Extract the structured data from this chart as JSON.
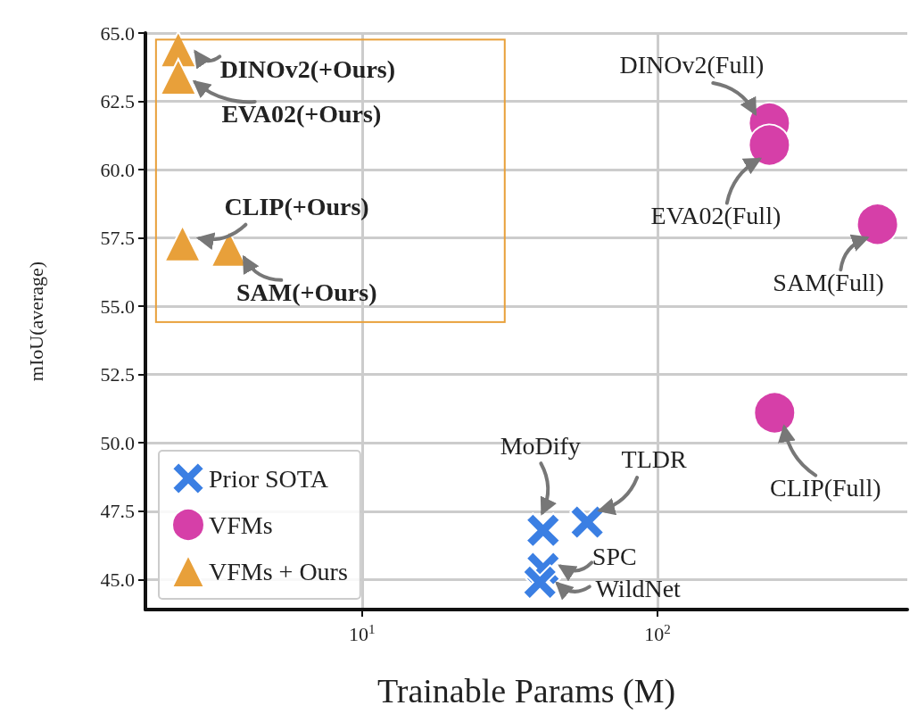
{
  "chart_data": {
    "type": "scatter",
    "xlabel": "Trainable Params (M)",
    "ylabel": "mIoU(average)",
    "log": "x",
    "xlim": [
      1.85,
      700
    ],
    "xticks": [
      {
        "value": 10,
        "label": "10$^{1}$"
      },
      {
        "value": 100,
        "label": "10$^{2}$"
      }
    ],
    "ylim": [
      43.9,
      65
    ],
    "yticks": [
      {
        "value": 45,
        "label": "45.0"
      },
      {
        "value": 47.5,
        "label": "47.5"
      },
      {
        "value": 50,
        "label": "50.0"
      },
      {
        "value": 52.5,
        "label": "52.5"
      },
      {
        "value": 55,
        "label": "55.0"
      },
      {
        "value": 57.5,
        "label": "57.5"
      },
      {
        "value": 60,
        "label": "60.0"
      },
      {
        "value": 62.5,
        "label": "62.5"
      },
      {
        "value": 65,
        "label": "65.0"
      }
    ],
    "grid": true,
    "legend": "bottom left",
    "series": [
      {
        "name": "Prior SOTA",
        "color": "#3b7fe3",
        "marker": "cross",
        "x": [
          41,
          57.8,
          41,
          40
        ],
        "values": [
          46.8,
          47.1,
          45.4,
          44.9
        ]
      },
      {
        "name": "VFMs",
        "color": "#d63fa8",
        "marker": "circle",
        "x": [
          239,
          239,
          555,
          249
        ],
        "values": [
          61.7,
          60.9,
          58.0,
          51.1
        ]
      },
      {
        "name": "VFMs + Ours",
        "color": "#e8a03a",
        "marker": "triangle",
        "x": [
          2.39,
          2.39,
          2.47,
          3.55
        ],
        "values": [
          64.4,
          63.4,
          57.3,
          57.1
        ]
      }
    ],
    "annotations": [
      {
        "text": "DINOv2(+Ours)",
        "x": 2.39,
        "y": 64.4
      },
      {
        "text": "EVA02(+Ours)",
        "x": 2.39,
        "y": 63.4
      },
      {
        "text": "CLIP(+Ours)",
        "x": 2.47,
        "y": 57.3
      },
      {
        "text": "SAM(+Ours)",
        "x": 3.55,
        "y": 57.1
      },
      {
        "text": "DINOv2(Full)",
        "x": 239,
        "y": 61.7
      },
      {
        "text": "EVA02(Full)",
        "x": 239,
        "y": 60.9
      },
      {
        "text": "SAM(Full)",
        "x": 555,
        "y": 58.0
      },
      {
        "text": "CLIP(Full)",
        "x": 249,
        "y": 51.1
      },
      {
        "text": "MoDify",
        "x": 41,
        "y": 46.8
      },
      {
        "text": "TLDR",
        "x": 57.8,
        "y": 47.1
      },
      {
        "text": "SPC",
        "x": 41,
        "y": 45.4
      },
      {
        "text": "WildNet",
        "x": 40,
        "y": 44.9
      }
    ]
  }
}
